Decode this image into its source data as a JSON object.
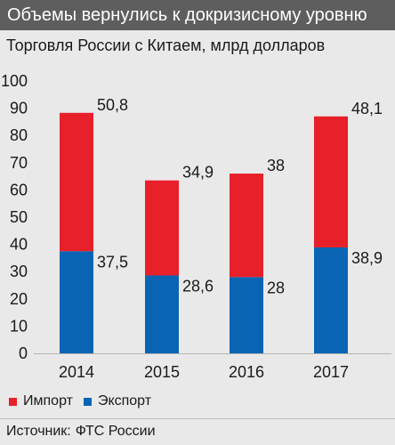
{
  "header": {
    "title": "Объемы вернулись к докризисному уровню",
    "subtitle": "Торговля России с Китаем, млрд долларов"
  },
  "source": {
    "label": "Источник:",
    "value": "ФТС России"
  },
  "colors": {
    "import": "#e8202a",
    "export": "#0a64b4",
    "header_bg": "#5e5e5e",
    "background": "#e9e9e9"
  },
  "chart_data": {
    "type": "bar",
    "stacked": true,
    "categories": [
      "2014",
      "2015",
      "2016",
      "2017"
    ],
    "series": [
      {
        "name": "Экспорт",
        "values": [
          37.5,
          28.6,
          28,
          38.9
        ],
        "labels": [
          "37,5",
          "28,6",
          "28",
          "38,9"
        ]
      },
      {
        "name": "Импорт",
        "values": [
          50.8,
          34.9,
          38,
          48.1
        ],
        "labels": [
          "50,8",
          "34,9",
          "38",
          "48,1"
        ]
      }
    ],
    "yticks": [
      "0",
      "10",
      "20",
      "30",
      "40",
      "50",
      "60",
      "70",
      "80",
      "90",
      "100"
    ],
    "ylim": [
      0,
      100
    ],
    "grid": false,
    "legend_position": "bottom-left",
    "legend_order": [
      "Импорт",
      "Экспорт"
    ]
  }
}
